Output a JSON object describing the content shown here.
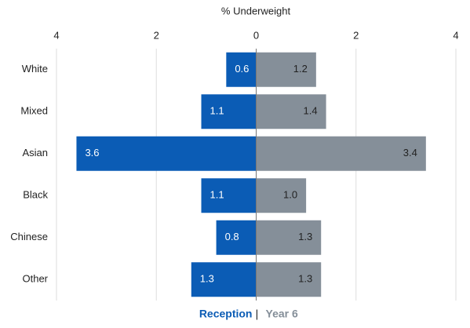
{
  "chart_data": {
    "type": "butterfly",
    "title": "% Underweight",
    "categories": [
      "White",
      "Mixed",
      "Asian",
      "Black",
      "Chinese",
      "Other"
    ],
    "series": [
      {
        "name": "Reception",
        "color": "#0b5cb5",
        "side": "left",
        "label_color": "#ffffff",
        "values": [
          0.6,
          1.1,
          3.6,
          1.1,
          0.8,
          1.3
        ],
        "value_labels": [
          "0.6",
          "1.1",
          "3.6",
          "1.1",
          "0.8",
          "1.3"
        ]
      },
      {
        "name": "Year 6",
        "color": "#858f99",
        "side": "right",
        "label_color": "#222222",
        "values": [
          1.2,
          1.4,
          3.4,
          1.0,
          1.3,
          1.3
        ],
        "value_labels": [
          "1.2",
          "1.4",
          "3.4",
          "1.0",
          "1.3",
          "1.3"
        ]
      }
    ],
    "legend_separator": "|",
    "xlim": [
      -4,
      4
    ],
    "xticks": [
      {
        "value": -4,
        "label": "4"
      },
      {
        "value": -2,
        "label": "2"
      },
      0,
      2,
      4
    ],
    "grid": true
  }
}
